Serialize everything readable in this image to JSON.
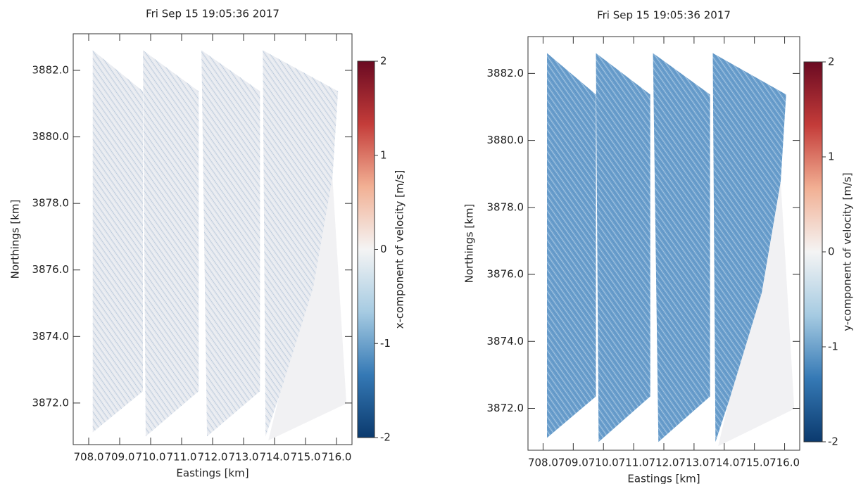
{
  "chart_data": [
    {
      "type": "image",
      "title": "Fri Sep 15 19:05:36 2017",
      "xlabel": "Eastings [km]",
      "ylabel": "Northings [km]",
      "xlim": [
        707.5,
        716.5
      ],
      "ylim": [
        3870.75,
        3883.1
      ],
      "xticks": [
        {
          "value": 708,
          "label": "708.0"
        },
        {
          "value": 709,
          "label": "709.0"
        },
        {
          "value": 710,
          "label": "710.0"
        },
        {
          "value": 711,
          "label": "711.0"
        },
        {
          "value": 712,
          "label": "712.0"
        },
        {
          "value": 713,
          "label": "713.0"
        },
        {
          "value": 714,
          "label": "714.0"
        },
        {
          "value": 715,
          "label": "715.0"
        },
        {
          "value": 716,
          "label": "716.0"
        }
      ],
      "yticks": [
        {
          "value": 3872,
          "label": "3872.0"
        },
        {
          "value": 3874,
          "label": "3874.0"
        },
        {
          "value": 3876,
          "label": "3876.0"
        },
        {
          "value": 3878,
          "label": "3878.0"
        },
        {
          "value": 3880,
          "label": "3880.0"
        },
        {
          "value": 3882,
          "label": "3882.0"
        }
      ],
      "color": "#e6e9ef",
      "colorbar": {
        "label": "x-component of velocity [m/s]",
        "lim": [
          -2,
          2
        ],
        "ticks": [
          -2,
          -1,
          0,
          1,
          2
        ],
        "colors": [
          "#0b3a6e",
          "#3579b5",
          "#a6cbe2",
          "#f4f4f4",
          "#f2b094",
          "#c43c39",
          "#6a0a22"
        ]
      }
    },
    {
      "type": "image",
      "title": "Fri Sep 15 19:05:36 2017",
      "xlabel": "Eastings [km]",
      "ylabel": "Northings [km]",
      "xlim": [
        707.5,
        716.5
      ],
      "ylim": [
        3870.75,
        3883.1
      ],
      "xticks": [
        {
          "value": 708,
          "label": "708.0"
        },
        {
          "value": 709,
          "label": "709.0"
        },
        {
          "value": 710,
          "label": "710.0"
        },
        {
          "value": 711,
          "label": "711.0"
        },
        {
          "value": 712,
          "label": "712.0"
        },
        {
          "value": 713,
          "label": "713.0"
        },
        {
          "value": 714,
          "label": "714.0"
        },
        {
          "value": 715,
          "label": "715.0"
        },
        {
          "value": 716,
          "label": "716.0"
        }
      ],
      "yticks": [
        {
          "value": 3872,
          "label": "3872.0"
        },
        {
          "value": 3874,
          "label": "3874.0"
        },
        {
          "value": 3876,
          "label": "3876.0"
        },
        {
          "value": 3878,
          "label": "3878.0"
        },
        {
          "value": 3880,
          "label": "3880.0"
        },
        {
          "value": 3882,
          "label": "3882.0"
        }
      ],
      "color": "#6b9fcd",
      "colorbar": {
        "label": "y-component of velocity [m/s]",
        "lim": [
          -2,
          2
        ],
        "ticks": [
          -2,
          -1,
          0,
          1,
          2
        ],
        "colors": [
          "#0b3a6e",
          "#3579b5",
          "#a6cbe2",
          "#f4f4f4",
          "#f2b094",
          "#c43c39",
          "#6a0a22"
        ]
      }
    }
  ]
}
